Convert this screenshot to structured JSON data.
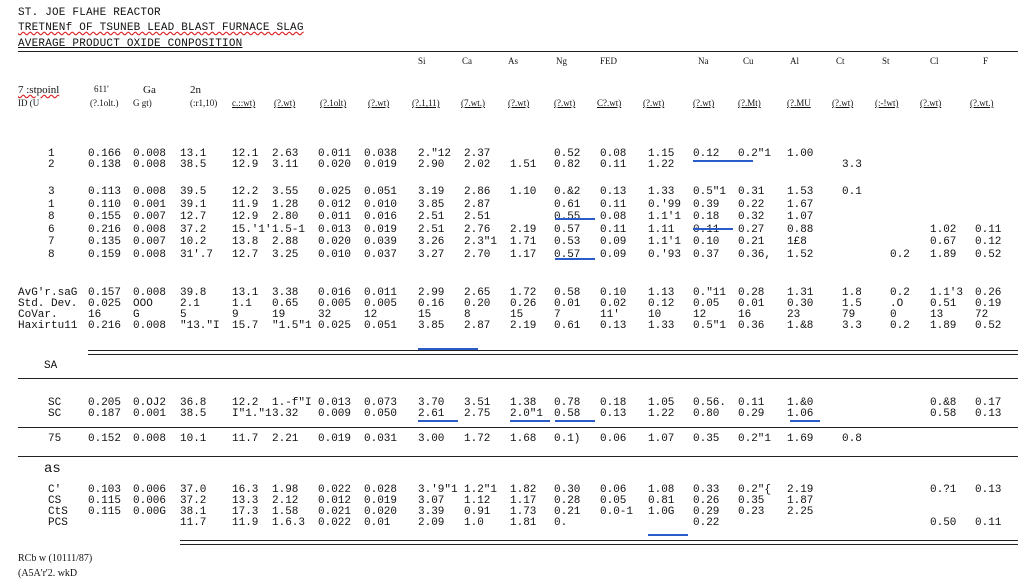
{
  "title": {
    "line1": "ST. JOE FLAHE REACTOR",
    "line2": "TRETNENf OF TSUNEB LEAD BLAST FURNACE SLAG",
    "line3": "AVERAGE PRODUCT OXIDE CONPOSITION"
  },
  "headers": {
    "top": [
      "Si",
      "Ca",
      "As",
      "Ng",
      "FED",
      "Na",
      "Cu",
      "Al",
      "Ct",
      "St",
      "Cl",
      "F"
    ],
    "row1": [
      "7 :stpoinl",
      "611'",
      "Ga",
      "2n"
    ],
    "row2": [
      "ID (U",
      "(?.1olt.)",
      "G gt)",
      "(:r1,10)",
      "c.::wt)",
      "(?.wt)",
      "(?.1olt)",
      "(?.wt)",
      "(?.1,11)",
      "(7.wt.)",
      "(?.wt)",
      "(?.wt)",
      "C?.wt)",
      "(?.wt)",
      "(?.wt)",
      "(?.Mt)",
      "(?.MU",
      "(?.wt)",
      "(:-!wt)",
      "(?.wt)",
      "(?.wt.)"
    ]
  },
  "rows": [
    {
      "id": "1",
      "v": [
        "0.166",
        "0.008",
        "13.1",
        "12.1",
        "2.63",
        "0.011",
        "0.038",
        "2.\"12",
        "2.37",
        "",
        "0.52",
        "0.08",
        "1.15",
        "0.12",
        "0.2\"1",
        "1.00",
        "",
        "",
        "",
        ""
      ]
    },
    {
      "id": "2",
      "v": [
        "0.138",
        "0.008",
        "38.5",
        "12.9",
        "3.11",
        "0.020",
        "0.019",
        "2.90",
        "2.02",
        "1.51",
        "0.82",
        "0.11",
        "1.22",
        "",
        "",
        "",
        "3.3",
        "",
        "",
        ""
      ]
    },
    {
      "id": "3",
      "v": [
        "0.113",
        "0.008",
        "39.5",
        "12.2",
        "3.55",
        "0.025",
        "0.051",
        "3.19",
        "2.86",
        "1.10",
        "0.&2",
        "0.13",
        "1.33",
        "0.5\"1",
        "0.31",
        "1.53",
        "0.1",
        "",
        "",
        ""
      ]
    },
    {
      "id": "1",
      "v": [
        "0.110",
        "0.001",
        "39.1",
        "11.9",
        "1.28",
        "0.012",
        "0.010",
        "3.85",
        "2.87",
        "",
        "0.61",
        "0.11",
        "0.'99",
        "0.39",
        "0.22",
        "1.67",
        "",
        "",
        "",
        ""
      ]
    },
    {
      "id": "8",
      "v": [
        "0.155",
        "0.007",
        "12.7",
        "12.9",
        "2.80",
        "0.011",
        "0.016",
        "2.51",
        "2.51",
        "",
        "0.55",
        "0.08",
        "1.1'1",
        "0.18",
        "0.32",
        "1.07",
        "",
        "",
        "",
        ""
      ]
    },
    {
      "id": "6",
      "v": [
        "0.216",
        "0.008",
        "37.2",
        "15.'1'",
        "1.5-1",
        "0.013",
        "0.019",
        "2.51",
        "2.76",
        "2.19",
        "0.57",
        "0.11",
        "1.11",
        "0.11",
        "0.27",
        "0.88",
        "",
        "",
        "1.02",
        "0.11"
      ]
    },
    {
      "id": "7",
      "v": [
        "0.135",
        "0.007",
        "10.2",
        "13.8",
        "2.88",
        "0.020",
        "0.039",
        "3.26",
        "2.3\"1",
        "1.71",
        "0.53",
        "0.09",
        "1.1'1",
        "0.10",
        "0.21",
        "1£8",
        "",
        "",
        "0.67",
        "0.12"
      ]
    },
    {
      "id": "8",
      "v": [
        "0.159",
        "0.008",
        "31'.7",
        "12.7",
        "3.25",
        "0.010",
        "0.037",
        "3.27",
        "2.70",
        "1.17",
        "0.57",
        "0.09",
        "0.'93",
        "0.37",
        "0.36,",
        "1.52",
        "",
        "0.2",
        "1.89",
        "0.52"
      ]
    }
  ],
  "stats": [
    {
      "id": "AvG'r.saG",
      "v": [
        "0.157",
        "0.008",
        "39.8",
        "13.1",
        "3.38",
        "0.016",
        "0.011",
        "2.99",
        "2.65",
        "1.72",
        "0.58",
        "0.10",
        "1.13",
        "0.\"11",
        "0.28",
        "1.31",
        "1.8",
        "0.2",
        "1.1'3",
        "0.26"
      ]
    },
    {
      "id": "Std. Dev.",
      "v": [
        "0.025",
        "OOO",
        "2.1",
        "1.1",
        "0.65",
        "0.005",
        "0.005",
        "0.16",
        "0.20",
        "0.26",
        "0.01",
        "0.02",
        "0.12",
        "0.05",
        "0.01",
        "0.30",
        "1.5",
        ".O",
        "0.51",
        "0.19"
      ]
    },
    {
      "id": "CoVar.",
      "v": [
        "16",
        "G",
        "5",
        "9",
        "19",
        "32",
        "12",
        "15",
        "8",
        "15",
        "7",
        "11'",
        "10",
        "12",
        "16",
        "23",
        "79",
        "0",
        "13",
        "72"
      ]
    },
    {
      "id": "Haxirtu11",
      "v": [
        "0.216",
        "0.008",
        "\"13.\"I",
        "15.7",
        "\"1.5\"1",
        "0.025",
        "0.051",
        "3.85",
        "2.87",
        "2.19",
        "0.61",
        "0.13",
        "1.33",
        "0.5\"1",
        "0.36",
        "1.&8",
        "3.3",
        "0.2",
        "1.89",
        "0.52"
      ]
    }
  ],
  "sa_label": "SA",
  "sc_rows": [
    {
      "id": "SC",
      "v": [
        "0.205",
        "0.OJ2",
        "36.8",
        "12.2",
        "1.-f\"I",
        "0.013",
        "0.073",
        "3.70",
        "3.51",
        "1.38",
        "0.78",
        "0.18",
        "1.05",
        "0.56.",
        "0.11",
        "1.&0",
        "",
        "",
        "0.&8",
        "0.17"
      ]
    },
    {
      "id": "SC",
      "v": [
        "0.187",
        "0.001",
        "38.5",
        "I\"1.\"1",
        "3.32",
        "0.009",
        "0.050",
        "2.61",
        "2.75",
        "2.0\"1",
        "0.58",
        "0.13",
        "1.22",
        "0.80",
        "0.29",
        "1.06",
        "",
        "",
        "0.58",
        "0.13"
      ]
    },
    {
      "id": "75",
      "v": [
        "0.152",
        "0.008",
        "10.1",
        "11.7",
        "2.21",
        "0.019",
        "0.031",
        "3.00",
        "1.72",
        "1.68",
        "0.1)",
        "0.06",
        "1.07",
        "0.35",
        "0.2\"1",
        "1.69",
        "0.8",
        "",
        "",
        ""
      ]
    }
  ],
  "as_label": "as",
  "as_rows": [
    {
      "id": "C'",
      "v": [
        "0.103",
        "0.006",
        "37.0",
        "16.3",
        "1.98",
        "0.022",
        "0.028",
        "3.'9\"1",
        "1.2\"1",
        "1.82",
        "0.30",
        "0.06",
        "1.08",
        "0.33",
        "0.2\"{",
        "2.19",
        "",
        "",
        "0.?1",
        "0.13"
      ]
    },
    {
      "id": "CS",
      "v": [
        "0.115",
        "0.006",
        "37.2",
        "13.3",
        "2.12",
        "0.012",
        "0.019",
        "3.07",
        "1.12",
        "1.17",
        "0.28",
        "0.05",
        "0.81",
        "0.26",
        "0.35",
        "1.87",
        "",
        "",
        "",
        ""
      ]
    },
    {
      "id": "CtS",
      "v": [
        "0.115",
        "0.00G",
        "38.1",
        "17.3",
        "1.58",
        "0.021",
        "0.020",
        "3.39",
        "0.91",
        "1.73",
        "0.21",
        "0.0-1",
        "1.0G",
        "0.29",
        "0.23",
        "2.25",
        "",
        "",
        "",
        ""
      ]
    },
    {
      "id": "PCS",
      "v": [
        "",
        "",
        "11.7",
        "11.9",
        "1.6.3",
        "0.022",
        "0.01",
        "2.09",
        "1.0",
        "1.81",
        "0.",
        "",
        "",
        "0.22",
        "",
        "",
        "",
        "",
        "0.50",
        "0.11"
      ]
    }
  ],
  "footer": {
    "line1": "RCb w (10111/87)",
    "line2": "(A5A'r'2. wkD"
  }
}
